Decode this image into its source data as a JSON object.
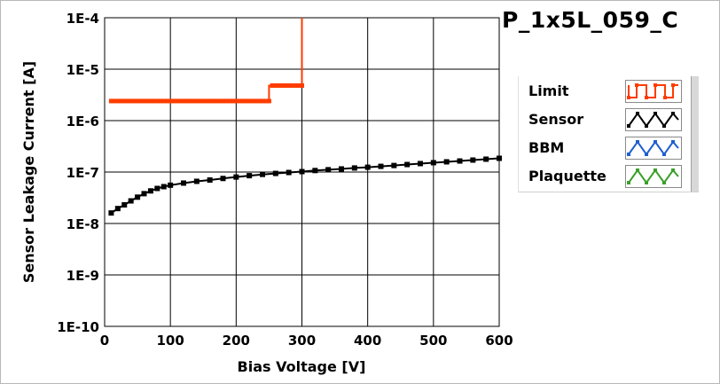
{
  "chart_data": {
    "type": "scatter",
    "title": "P_1x5L_059_C",
    "xlabel": "Bias Voltage [V]",
    "ylabel": "Sensor Leakage Current [A]",
    "xlim": [
      0,
      600
    ],
    "ylim": [
      1e-10,
      0.0001
    ],
    "yscale": "log",
    "grid": true,
    "legend_placement": "right",
    "x_ticks": [
      "0",
      "100",
      "200",
      "300",
      "400",
      "500",
      "600"
    ],
    "y_ticks": [
      "1E-10",
      "1E-9",
      "1E-8",
      "1E-7",
      "1E-6",
      "1E-5",
      "1E-4"
    ],
    "series": [
      {
        "name": "Limit",
        "color": "#ff3c00",
        "style": "step",
        "x": [
          10,
          250,
          250,
          300,
          300
        ],
        "y": [
          2.4e-06,
          2.4e-06,
          4.8e-06,
          4.8e-06,
          0.0001
        ]
      },
      {
        "name": "Sensor",
        "color": "#000000",
        "style": "markers",
        "x": [
          10,
          20,
          30,
          40,
          50,
          60,
          70,
          80,
          90,
          100,
          120,
          140,
          160,
          180,
          200,
          220,
          240,
          260,
          280,
          300,
          320,
          340,
          360,
          380,
          400,
          420,
          440,
          460,
          480,
          500,
          520,
          540,
          560,
          580,
          600
        ],
        "y": [
          1.6e-08,
          1.95e-08,
          2.3e-08,
          2.75e-08,
          3.25e-08,
          3.8e-08,
          4.3e-08,
          4.8e-08,
          5.2e-08,
          5.55e-08,
          6.1e-08,
          6.6e-08,
          7e-08,
          7.5e-08,
          8e-08,
          8.5e-08,
          9e-08,
          9.4e-08,
          9.8e-08,
          1.02e-07,
          1.07e-07,
          1.11e-07,
          1.15e-07,
          1.2e-07,
          1.24e-07,
          1.29e-07,
          1.34e-07,
          1.4e-07,
          1.46e-07,
          1.52e-07,
          1.58e-07,
          1.64e-07,
          1.71e-07,
          1.78e-07,
          1.85e-07
        ]
      },
      {
        "name": "BBM",
        "color": "#1f5fd0",
        "style": "markers",
        "x": [],
        "y": []
      },
      {
        "name": "Plaquette",
        "color": "#3aa02a",
        "style": "markers",
        "x": [],
        "y": []
      }
    ]
  }
}
